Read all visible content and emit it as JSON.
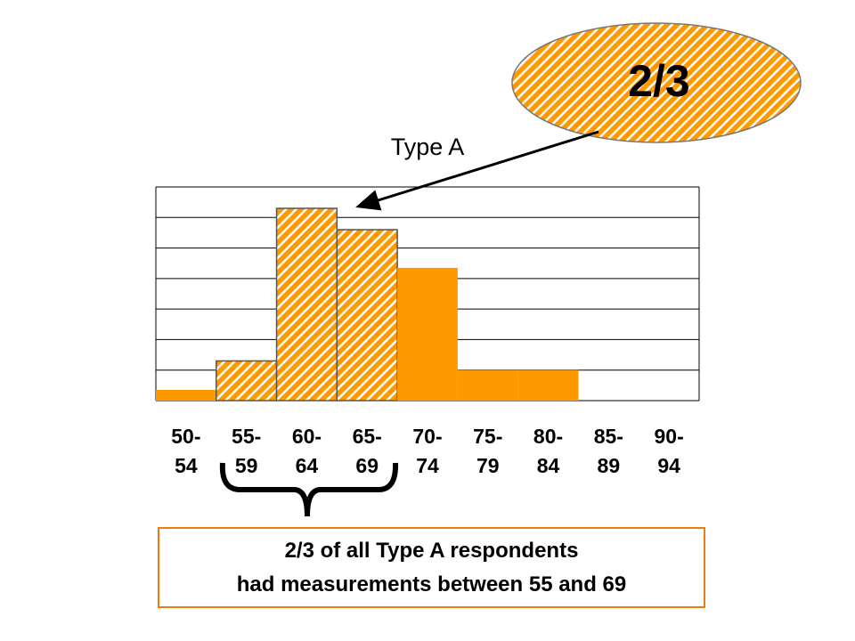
{
  "chart_data": {
    "type": "bar",
    "title": "Type A",
    "categories": [
      "50-\n54",
      "55-\n59",
      "60-\n64",
      "65-\n69",
      "70-\n74",
      "75-\n79",
      "80-\n84",
      "85-\n89",
      "90-\n94"
    ],
    "values": [
      0.35,
      1.3,
      6.3,
      5.6,
      4.35,
      1,
      1,
      0,
      0
    ],
    "hatched": [
      false,
      true,
      true,
      true,
      false,
      false,
      false,
      false,
      false
    ],
    "color": "#ff9900",
    "ylim": [
      0,
      7
    ],
    "yticks": [
      0,
      1,
      2,
      3,
      4,
      5,
      6,
      7
    ],
    "grid": true,
    "annotations": {
      "callout": "2/3",
      "note": [
        "2/3 of all Type A respondents",
        "had measurements between 55 and 69"
      ]
    }
  }
}
